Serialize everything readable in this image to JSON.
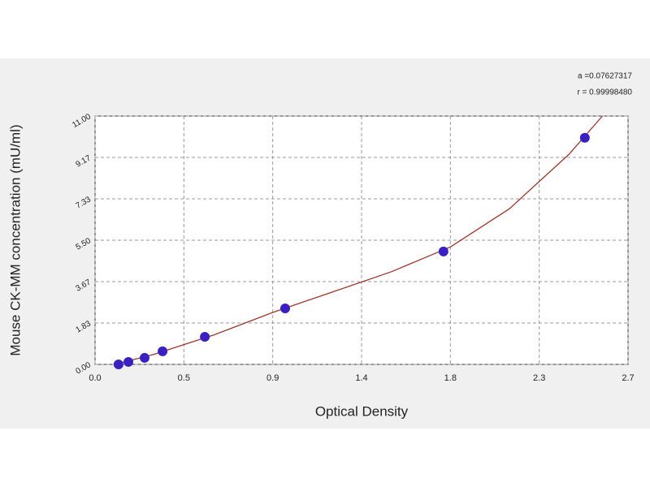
{
  "chart_data": {
    "type": "scatter",
    "x_label": "Optical Density",
    "y_label": "Mouse CK-MM concentration (mU/ml)",
    "annotations": [
      "a =0.07627317",
      "r = 0.99998480"
    ],
    "xlim": [
      0,
      2.7
    ],
    "ylim": [
      0,
      11
    ],
    "xticks": [
      {
        "value": 0,
        "label": "0.0"
      },
      {
        "value": 0.45,
        "label": "0.5"
      },
      0.9,
      {
        "value": 1.35,
        "label": "1.4"
      },
      1.8,
      {
        "value": 2.25,
        "label": "2.3"
      },
      2.7
    ],
    "yticks": [
      {
        "value": 0,
        "label": "0.00"
      },
      {
        "value": 1.8333,
        "label": "1.83"
      },
      {
        "value": 3.6667,
        "label": "3.67"
      },
      {
        "value": 5.5,
        "label": "5.50"
      },
      {
        "value": 7.3333,
        "label": "7.33"
      },
      {
        "value": 9.1667,
        "label": "9.17"
      },
      {
        "value": 11,
        "label": "11.00"
      }
    ],
    "grid": true,
    "series": [
      {
        "color": "#3a20c0",
        "x": [
          0.119,
          0.169,
          0.251,
          0.342,
          0.556,
          0.963,
          1.765,
          2.481
        ],
        "values": [
          0,
          0.11,
          0.29,
          0.58,
          1.22,
          2.48,
          5.0,
          10.04
        ]
      },
      {
        "type": "line",
        "color": "#a0352a",
        "x": [
          0.1,
          0.3,
          0.6,
          0.9,
          1.2,
          1.5,
          1.8,
          2.1,
          2.4,
          2.57
        ],
        "values": [
          0,
          0.45,
          1.3,
          2.3,
          3.2,
          4.1,
          5.2,
          6.9,
          9.3,
          11.0
        ]
      }
    ]
  }
}
